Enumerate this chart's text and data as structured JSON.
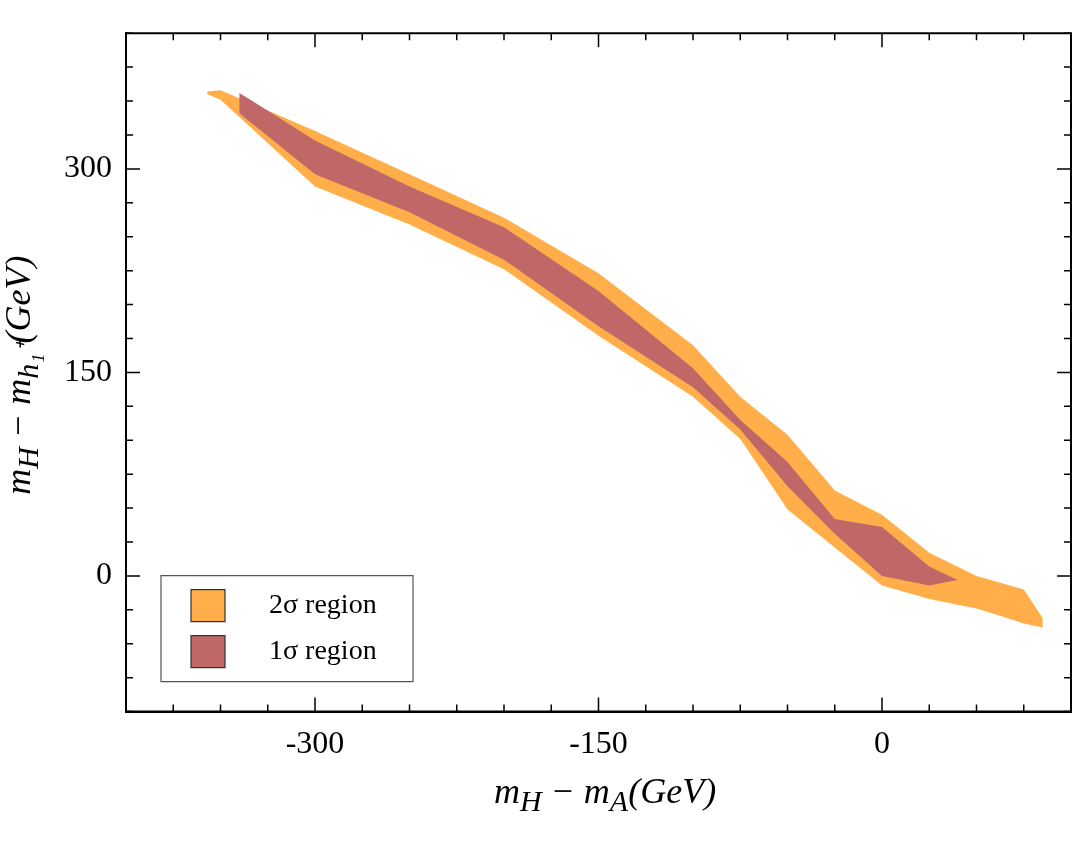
{
  "chart_data": {
    "type": "area",
    "xlabel": "m$_{H}$ − m$_{A}$(GeV)",
    "ylabel": "m$_{H}$ − m$_{h₁⁺}$(GeV)",
    "xlim": [
      -400,
      100
    ],
    "ylim": [
      -100,
      400
    ],
    "xticks": [
      {
        "value": -400,
        "label": null
      },
      {
        "value": -375,
        "label": null
      },
      {
        "value": -350,
        "label": null
      },
      {
        "value": -325,
        "label": null
      },
      {
        "value": -300,
        "label": "-300"
      },
      {
        "value": -275,
        "label": null
      },
      {
        "value": -250,
        "label": null
      },
      {
        "value": -225,
        "label": null
      },
      {
        "value": -200,
        "label": null
      },
      {
        "value": -175,
        "label": null
      },
      {
        "value": -150,
        "label": "-150"
      },
      {
        "value": -125,
        "label": null
      },
      {
        "value": -100,
        "label": null
      },
      {
        "value": -75,
        "label": null
      },
      {
        "value": -50,
        "label": null
      },
      {
        "value": -25,
        "label": null
      },
      0,
      {
        "value": 25,
        "label": null
      },
      {
        "value": 50,
        "label": null
      },
      {
        "value": 75,
        "label": null
      },
      {
        "value": 100,
        "label": null
      }
    ],
    "yticks": [
      {
        "value": -100,
        "label": null
      },
      {
        "value": -75,
        "label": null
      },
      {
        "value": -50,
        "label": null
      },
      {
        "value": -25,
        "label": null
      },
      0,
      {
        "value": 25,
        "label": null
      },
      {
        "value": 50,
        "label": null
      },
      {
        "value": 75,
        "label": null
      },
      {
        "value": 100,
        "label": null
      },
      {
        "value": 125,
        "label": null
      },
      150,
      {
        "value": 175,
        "label": null
      },
      {
        "value": 200,
        "label": null
      },
      {
        "value": 225,
        "label": null
      },
      {
        "value": 250,
        "label": null
      },
      {
        "value": 275,
        "label": null
      },
      300,
      {
        "value": 325,
        "label": null
      },
      {
        "value": 350,
        "label": null
      },
      {
        "value": 375,
        "label": null
      },
      {
        "value": 400,
        "label": null
      }
    ],
    "legend": "bottom left",
    "series": [
      {
        "name": "2σ region",
        "color": "#ffae4a",
        "x": [
          -357,
          -350,
          -300,
          -250,
          -200,
          -150,
          -100,
          -75,
          -50,
          -25,
          0,
          25,
          50,
          75,
          85,
          85,
          75,
          50,
          25,
          0,
          -25,
          -50,
          -75,
          -100,
          -150,
          -200,
          -250,
          -300,
          -350,
          -357
        ],
        "values": [
          357,
          358,
          328,
          296,
          264,
          223,
          170,
          132,
          104,
          63,
          45,
          17,
          0,
          -10,
          -31,
          -38,
          -35,
          -24,
          -17,
          -7,
          21,
          49,
          101,
          132,
          177,
          226,
          259,
          287,
          351,
          355
        ]
      },
      {
        "name": "1σ region",
        "color": "#c06868",
        "x": [
          -340,
          -300,
          -250,
          -200,
          -150,
          -100,
          -75,
          -50,
          -25,
          0,
          25,
          40,
          25,
          0,
          -25,
          -50,
          -75,
          -100,
          -150,
          -200,
          -250,
          -300,
          -340
        ],
        "values": [
          356,
          321,
          287,
          257,
          210,
          153,
          115,
          84,
          42,
          36,
          7,
          -3,
          -7,
          0,
          31,
          66,
          108,
          139,
          184,
          233,
          268,
          296,
          341
        ]
      }
    ]
  }
}
